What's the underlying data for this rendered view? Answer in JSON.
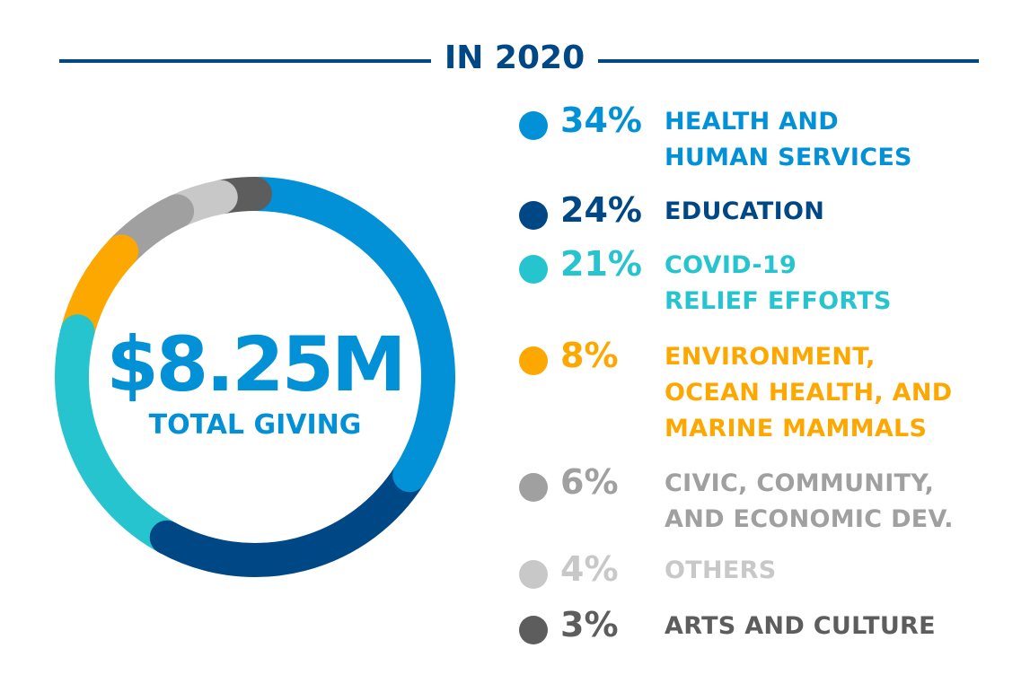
{
  "header": {
    "title": "IN 2020"
  },
  "center": {
    "total": "$8.25M",
    "label": "TOTAL GIVING"
  },
  "chart_data": {
    "type": "pie",
    "donut": true,
    "title": "IN 2020",
    "categories": [
      "HEALTH AND HUMAN SERVICES",
      "EDUCATION",
      "COVID-19 RELIEF EFFORTS",
      "ENVIRONMENT, OCEAN HEALTH, AND MARINE MAMMALS",
      "CIVIC, COMMUNITY, AND ECONOMIC DEV.",
      "OTHERS",
      "ARTS AND CULTURE"
    ],
    "values": [
      34,
      24,
      21,
      8,
      6,
      4,
      3
    ],
    "colors": [
      "#0290d6",
      "#004785",
      "#25c4cf",
      "#fca800",
      "#a0a0a0",
      "#c8c8c8",
      "#5d5d5d"
    ],
    "legend_placement": "right",
    "legend": [
      {
        "pct": "34%",
        "lines": [
          "HEALTH AND",
          "HUMAN SERVICES"
        ]
      },
      {
        "pct": "24%",
        "lines": [
          "EDUCATION"
        ]
      },
      {
        "pct": "21%",
        "lines": [
          "COVID-19",
          "RELIEF EFFORTS"
        ]
      },
      {
        "pct": "8%",
        "lines": [
          "ENVIRONMENT,",
          "OCEAN HEALTH, AND",
          "MARINE MAMMALS"
        ]
      },
      {
        "pct": "6%",
        "lines": [
          "CIVIC, COMMUNITY,",
          "AND ECONOMIC DEV."
        ]
      },
      {
        "pct": "4%",
        "lines": [
          "OTHERS"
        ]
      },
      {
        "pct": "3%",
        "lines": [
          "ARTS AND CULTURE"
        ]
      }
    ]
  }
}
